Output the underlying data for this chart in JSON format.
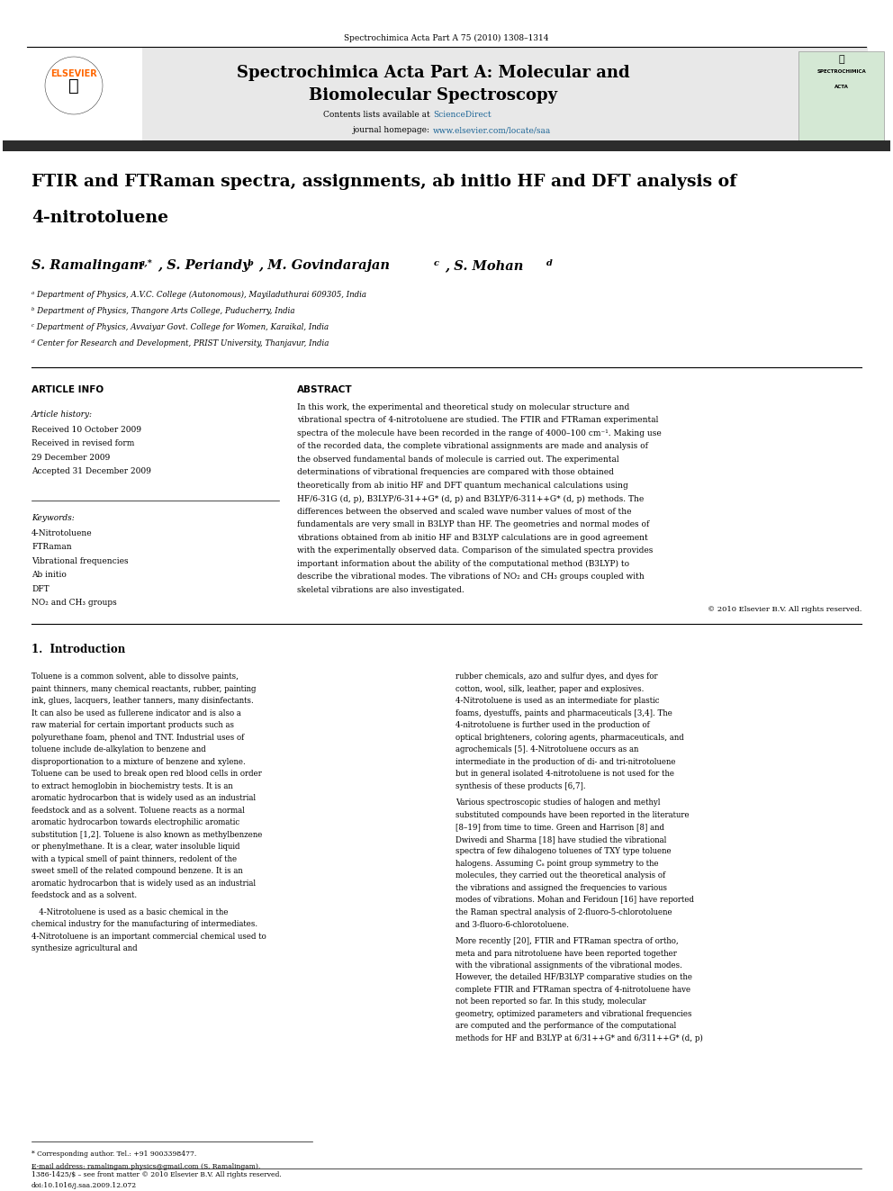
{
  "page_width": 9.92,
  "page_height": 13.23,
  "bg_color": "#ffffff",
  "header_journal": "Spectrochimica Acta Part A 75 (2010) 1308–1314",
  "journal_name_line1": "Spectrochimica Acta Part A: Molecular and",
  "journal_name_line2": "Biomolecular Spectroscopy",
  "contents_text": "Contents lists available at",
  "science_direct": "ScienceDirect",
  "journal_homepage": "journal homepage: www.elsevier.com/locate/saa",
  "article_title_line1": "FTIR and FTRaman spectra, assignments, ab initio HF and DFT analysis of",
  "article_title_line2": "4-nitrotoluene",
  "authors": "S. Ramalingam ᵃ,*, S. Periandy ᵇ, M. Govindarajan ᶜ, S. Mohan ᵈ",
  "affil_a": "ᵃ Department of Physics, A.V.C. College (Autonomous), Mayiladuthurai 609305, India",
  "affil_b": "ᵇ Department of Physics, Thangore Arts College, Puducherry, India",
  "affil_c": "ᶜ Department of Physics, Avvaiyar Govt. College for Women, Karaikal, India",
  "affil_d": "ᵈ Center for Research and Development, PRIST University, Thanjavur, India",
  "article_info_label": "ARTICLE INFO",
  "abstract_label": "ABSTRACT",
  "article_history_label": "Article history:",
  "received_1": "Received 10 October 2009",
  "received_2": "Received in revised form",
  "received_3": "29 December 2009",
  "accepted": "Accepted 31 December 2009",
  "keywords_label": "Keywords:",
  "keyword_1": "4-Nitrotoluene",
  "keyword_2": "FTRaman",
  "keyword_3": "Vibrational frequencies",
  "keyword_4": "Ab initio",
  "keyword_5": "DFT",
  "keyword_6": "NO₂ and CH₃ groups",
  "abstract_text": "In this work, the experimental and theoretical study on molecular structure and vibrational spectra of 4-nitrotoluene are studied. The FTIR and FTRaman experimental spectra of the molecule have been recorded in the range of 4000–100 cm⁻¹. Making use of the recorded data, the complete vibrational assignments are made and analysis of the observed fundamental bands of molecule is carried out. The experimental determinations of vibrational frequencies are compared with those obtained theoretically from ab initio HF and DFT quantum mechanical calculations using HF/6-31G (d, p), B3LYP/6-31++G* (d, p) and B3LYP/6-311++G* (d, p) methods. The differences between the observed and scaled wave number values of most of the fundamentals are very small in B3LYP than HF. The geometries and normal modes of vibrations obtained from ab initio HF and B3LYP calculations are in good agreement with the experimentally observed data. Comparison of the simulated spectra provides important information about the ability of the computational method (B3LYP) to describe the vibrational modes. The vibrations of NO₂ and CH₃ groups coupled with skeletal vibrations are also investigated.",
  "copyright": "© 2010 Elsevier B.V. All rights reserved.",
  "section1_title": "1.  Introduction",
  "intro_col1": "Toluene is a common solvent, able to dissolve paints, paint thinners, many chemical reactants, rubber, painting ink, glues, lacquers, leather tanners, many disinfectants. It can also be used as fullerene indicator and is also a raw material for certain important products such as polyurethane foam, phenol and TNT. Industrial uses of toluene include de-alkylation to benzene and disproportionation to a mixture of benzene and xylene. Toluene can be used to break open red blood cells in order to extract hemoglobin in biochemistry tests. It is an aromatic hydrocarbon that is widely used as an industrial feedstock and as a solvent. Toluene reacts as a normal aromatic hydrocarbon towards electrophilic aromatic substitution [1,2]. Toluene is also known as methylbenzene or phenylmethane. It is a clear, water insoluble liquid with a typical smell of paint thinners, redolent of the sweet smell of the related compound benzene. It is an aromatic hydrocarbon that is widely used as an industrial feedstock and as a solvent.",
  "intro_para2_col1": "4-Nitrotoluene is used as a basic chemical in the chemical industry for the manufacturing of intermediates. 4-Nitrotoluene is an important commercial chemical used to synthesize agricultural and",
  "intro_col2": "rubber chemicals, azo and sulfur dyes, and dyes for cotton, wool, silk, leather, paper and explosives. 4-Nitrotoluene is used as an intermediate for plastic foams, dyestuffs, paints and pharmaceuticals [3,4]. The 4-nitrotoluene is further used in the production of optical brighteners, coloring agents, pharmaceuticals, and agrochemicals [5]. 4-Nitrotoluene occurs as an intermediate in the production of di- and tri-nitrotoluene but in general isolated 4-nitrotoluene is not used for the synthesis of these products [6,7].",
  "intro_col2_para2": "Various spectroscopic studies of halogen and methyl substituted compounds have been reported in the literature [8–19] from time to time. Green and Harrison [8] and Dwivedi and Sharma [18] have studied the vibrational spectra of few dihalogeno toluenes of TXY type toluene halogens. Assuming Cₛ point group symmetry to the molecules, they carried out the theoretical analysis of the vibrations and assigned the frequencies to various modes of vibrations. Mohan and Feridoun [16] have reported the Raman spectral analysis of 2-fluoro-5-chlorotoluene and 3-fluoro-6-chlorotoluene.",
  "intro_col2_para3": "More recently [20], FTIR and FTRaman spectra of ortho, meta and para nitrotoluene have been reported together with the vibrational assignments of the vibrational modes. However, the detailed HF/B3LYP comparative studies on the complete FTIR and FTRaman spectra of 4-nitrotoluene have not been reported so far. In this study, molecular geometry, optimized parameters and vibrational frequencies are computed and the performance of the computational methods for HF and B3LYP at 6/31++G* and 6/311++G* (d, p)",
  "footnote_star": "* Corresponding author. Tel.: +91 9003398477.",
  "footnote_email": "E-mail address: ramalingam.physics@gmail.com (S. Ramalingam).",
  "footnote_issn": "1386-1425/$ – see front matter © 2010 Elsevier B.V. All rights reserved.",
  "footnote_doi": "doi:10.1016/j.saa.2009.12.072",
  "header_top_color": "#000000",
  "banner_bg_color": "#e8e8e8",
  "elsevier_orange": "#FF6600",
  "science_direct_color": "#1a6496",
  "journal_homepage_color": "#1a6496",
  "thick_bar_color": "#2c2c2c",
  "thin_line_color": "#000000"
}
